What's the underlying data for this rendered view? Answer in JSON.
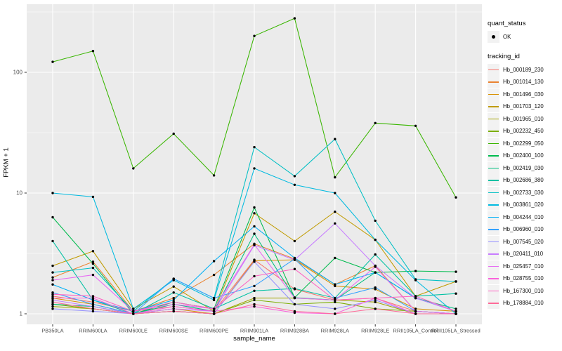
{
  "figure": {
    "background": "#FFFFFF",
    "panel_background": "#EBEBEB",
    "grid_color": "#FFFFFF",
    "axis_text_color": "#4D4D4D",
    "tick_color": "#333333",
    "point_color": "#000000",
    "legend_key_fill": "#F2F2F2"
  },
  "axes": {
    "x_title": "sample_name",
    "y_title": "FPKM + 1"
  },
  "legend": {
    "quant_title": "quant_status",
    "quant_item_label": "OK",
    "quant_marker": "point-icon",
    "tracking_title": "tracking_id",
    "position": "right"
  },
  "chart_data": {
    "type": "line",
    "title": "",
    "xlabel": "sample_name",
    "ylabel": "FPKM + 1",
    "y_scale": "log10",
    "y_tick_values": [
      1,
      10,
      100
    ],
    "y_minor_tick_values": [
      3.162,
      31.62,
      316.2
    ],
    "ylim_log_range": [
      1,
      370
    ],
    "grid": true,
    "legend_position": "right",
    "marker": "black-point-all-vertices",
    "categories": [
      "PB350LA",
      "RRIM600LA",
      "RRIM600LE",
      "RRIM600SE",
      "RRIM600PE",
      "RRIM901LA",
      "RRIM928BA",
      "RRIM928LA",
      "RRIM928LE",
      "RRII105LA_Control",
      "RRII105LA_Stressed"
    ],
    "series": [
      {
        "name": "Hb_000189_230",
        "color": "#F8766D",
        "values": [
          1.4,
          1.25,
          1.05,
          1.15,
          1.05,
          2.8,
          1.6,
          1.3,
          1.35,
          1.05,
          1.0
        ]
      },
      {
        "name": "Hb_001014_130",
        "color": "#EA8331",
        "values": [
          2.0,
          2.7,
          1.05,
          1.35,
          2.1,
          3.8,
          2.85,
          1.75,
          2.5,
          1.05,
          1.0
        ]
      },
      {
        "name": "Hb_001496_030",
        "color": "#D89000",
        "values": [
          1.35,
          1.2,
          1.0,
          1.1,
          1.0,
          2.75,
          2.8,
          1.7,
          1.6,
          1.1,
          1.05
        ]
      },
      {
        "name": "Hb_001703_120",
        "color": "#C09B00",
        "values": [
          2.5,
          3.3,
          1.1,
          1.68,
          1.05,
          6.8,
          4.0,
          7.0,
          4.1,
          1.4,
          1.85
        ]
      },
      {
        "name": "Hb_001965_010",
        "color": "#A3A500",
        "values": [
          1.15,
          1.1,
          1.0,
          1.05,
          1.0,
          1.35,
          1.35,
          1.3,
          1.25,
          1.0,
          1.0
        ]
      },
      {
        "name": "Hb_002232_450",
        "color": "#7CAE00",
        "values": [
          1.2,
          1.1,
          1.0,
          1.05,
          1.0,
          1.3,
          1.2,
          1.25,
          1.1,
          1.05,
          1.0
        ]
      },
      {
        "name": "Hb_002299_050",
        "color": "#39B600",
        "values": [
          122,
          150,
          16,
          31,
          14,
          200,
          280,
          13.5,
          38,
          36,
          9.2
        ]
      },
      {
        "name": "Hb_002400_100",
        "color": "#00BB4E",
        "values": [
          6.3,
          2.6,
          1.0,
          1.25,
          1.1,
          7.6,
          1.36,
          2.9,
          2.2,
          2.26,
          2.23
        ]
      },
      {
        "name": "Hb_002419_030",
        "color": "#00BF7D",
        "values": [
          1.2,
          1.15,
          1.0,
          1.2,
          1.05,
          4.6,
          1.36,
          1.3,
          2.2,
          1.35,
          1.1
        ]
      },
      {
        "name": "Hb_002686_380",
        "color": "#00C1A3",
        "values": [
          4.0,
          1.3,
          1.0,
          1.5,
          1.1,
          1.55,
          1.62,
          1.35,
          3.1,
          1.4,
          1.47
        ]
      },
      {
        "name": "Hb_002733_030",
        "color": "#00BFC4",
        "values": [
          2.2,
          2.4,
          1.05,
          1.95,
          1.35,
          24,
          13.8,
          28,
          5.9,
          1.93,
          1.85
        ]
      },
      {
        "name": "Hb_003861_020",
        "color": "#00BAE0",
        "values": [
          10,
          9.3,
          1.1,
          1.9,
          1.3,
          16,
          11.7,
          10,
          4.1,
          1.9,
          1.0
        ]
      },
      {
        "name": "Hb_004244_010",
        "color": "#00B0F6",
        "values": [
          1.75,
          1.3,
          1.05,
          1.3,
          2.73,
          5.3,
          2.9,
          1.75,
          2.2,
          1.35,
          1.05
        ]
      },
      {
        "name": "Hb_006960_010",
        "color": "#35A2FF",
        "values": [
          1.5,
          1.2,
          1.0,
          1.95,
          1.35,
          1.7,
          2.85,
          1.35,
          1.65,
          1.05,
          1.0
        ]
      },
      {
        "name": "Hb_007545_020",
        "color": "#9590FF",
        "values": [
          1.1,
          1.05,
          1.0,
          1.05,
          1.0,
          2.7,
          1.2,
          1.1,
          1.3,
          1.0,
          1.0
        ]
      },
      {
        "name": "Hb_020411_010",
        "color": "#C77CFF",
        "values": [
          1.3,
          1.15,
          1.0,
          1.1,
          1.05,
          3.7,
          2.8,
          5.6,
          2.5,
          1.35,
          1.05
        ]
      },
      {
        "name": "Hb_025457_010",
        "color": "#E76BF3",
        "values": [
          1.9,
          2.1,
          1.05,
          1.2,
          1.1,
          3.75,
          1.35,
          1.3,
          2.45,
          1.05,
          1.0
        ]
      },
      {
        "name": "Hb_028755_010",
        "color": "#FA62DB",
        "values": [
          1.35,
          1.35,
          1.0,
          1.15,
          1.05,
          1.15,
          1.02,
          1.0,
          1.35,
          1.0,
          1.0
        ]
      },
      {
        "name": "Hb_167300_010",
        "color": "#FF61C3",
        "values": [
          1.45,
          1.4,
          1.05,
          1.25,
          1.1,
          2.05,
          2.35,
          1.3,
          1.35,
          1.4,
          1.05
        ]
      },
      {
        "name": "Hb_178884_010",
        "color": "#FF6A98",
        "values": [
          1.25,
          1.1,
          1.0,
          1.05,
          1.0,
          1.2,
          1.05,
          1.0,
          1.1,
          1.0,
          1.0
        ]
      }
    ]
  }
}
